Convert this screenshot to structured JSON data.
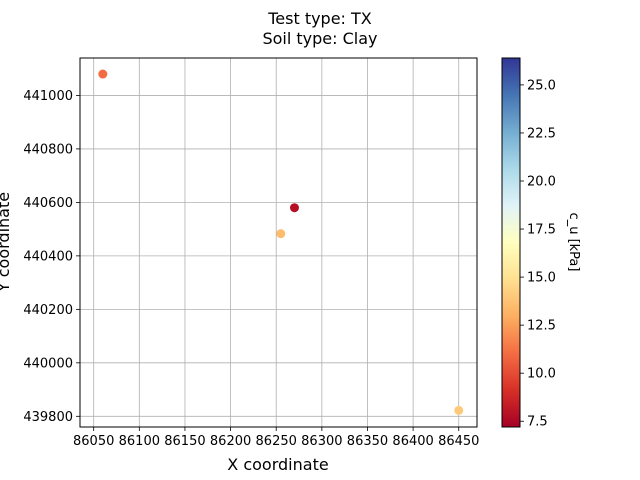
{
  "chart_data": {
    "type": "scatter",
    "title": [
      "Test type: TX",
      "Soil type: Clay"
    ],
    "xlabel": "X coordinate",
    "ylabel": "Y coordinate",
    "xlim": [
      86035,
      86470
    ],
    "ylim": [
      439760,
      441140
    ],
    "xticks": [
      86050,
      86100,
      86150,
      86200,
      86250,
      86300,
      86350,
      86400,
      86450
    ],
    "yticks": [
      439800,
      440000,
      440200,
      440400,
      440600,
      440800,
      441000
    ],
    "grid": true,
    "points": [
      {
        "x": 86060,
        "y": 441080,
        "c_u": 11.0
      },
      {
        "x": 86270,
        "y": 440580,
        "c_u": 7.8
      },
      {
        "x": 86255,
        "y": 440483,
        "c_u": 13.5
      },
      {
        "x": 86450,
        "y": 439822,
        "c_u": 14.0
      }
    ],
    "colorbar": {
      "label": "c_u [kPa]",
      "range": [
        7.2,
        26.4
      ],
      "ticks": [
        "7.5",
        "10.0",
        "12.5",
        "15.0",
        "17.5",
        "20.0",
        "22.5",
        "25.0"
      ],
      "colormap": [
        "#a50026",
        "#d73027",
        "#f46d43",
        "#fdae61",
        "#fee090",
        "#ffffbf",
        "#e0f3f8",
        "#abd9e9",
        "#74add1",
        "#4575b4",
        "#313695"
      ]
    }
  }
}
